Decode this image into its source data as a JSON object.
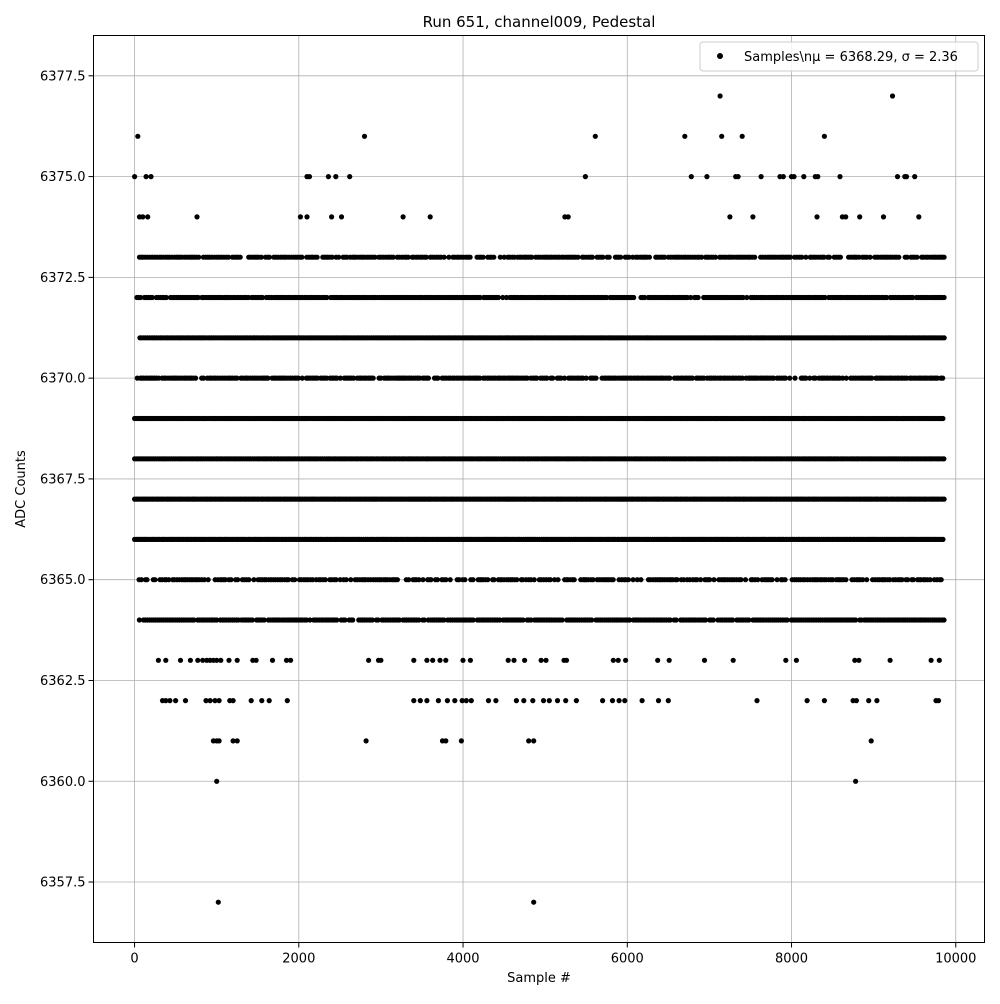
{
  "chart_data": {
    "type": "scatter",
    "title": "Run 651, channel009, Pedestal",
    "xlabel": "Sample #",
    "ylabel": "ADC Counts",
    "xlim": [
      -500,
      10350
    ],
    "ylim": [
      6356.0,
      6378.5
    ],
    "xticks": [
      0,
      2000,
      4000,
      6000,
      8000,
      10000
    ],
    "xtick_labels": [
      "0",
      "2000",
      "4000",
      "6000",
      "8000",
      "10000"
    ],
    "yticks": [
      6357.5,
      6360.0,
      6362.5,
      6365.0,
      6367.5,
      6370.0,
      6372.5,
      6375.0,
      6377.5
    ],
    "ytick_labels": [
      "6357.5",
      "6360.0",
      "6362.5",
      "6365.0",
      "6367.5",
      "6370.0",
      "6372.5",
      "6375.0",
      "6377.5"
    ],
    "grid": true,
    "legend_position": "upper right",
    "series": [
      {
        "name": "Samples\\nμ = 6368.29, σ = 2.36",
        "color": "#000000",
        "marker": "circle",
        "points": [
          [
            40,
            6376
          ],
          [
            1020,
            6357
          ],
          [
            4860,
            6357
          ],
          [
            1000,
            6360
          ],
          [
            8780,
            6360
          ],
          [
            5610,
            6376
          ],
          [
            6700,
            6376
          ],
          [
            7150,
            6376
          ],
          [
            7400,
            6376
          ],
          [
            8400,
            6376
          ],
          [
            2800,
            6376
          ],
          [
            7130,
            6377
          ],
          [
            9230,
            6377
          ],
          [
            960,
            6361
          ],
          [
            1000,
            6361
          ],
          [
            1030,
            6361
          ],
          [
            1200,
            6361
          ],
          [
            1250,
            6361
          ],
          [
            2820,
            6361
          ],
          [
            3750,
            6361
          ],
          [
            3790,
            6361
          ],
          [
            3980,
            6361
          ],
          [
            4800,
            6361
          ],
          [
            4860,
            6361
          ],
          [
            8970,
            6361
          ],
          [
            0,
            6375
          ],
          [
            140,
            6375
          ],
          [
            200,
            6375
          ],
          [
            2100,
            6375
          ],
          [
            2130,
            6375
          ],
          [
            2360,
            6375
          ],
          [
            2450,
            6375
          ],
          [
            2620,
            6375
          ],
          [
            5490,
            6375
          ],
          [
            6780,
            6375
          ],
          [
            6970,
            6375
          ],
          [
            7320,
            6375
          ],
          [
            7350,
            6375
          ],
          [
            7630,
            6375
          ],
          [
            7860,
            6375
          ],
          [
            7900,
            6375
          ],
          [
            8000,
            6375
          ],
          [
            8030,
            6375
          ],
          [
            8150,
            6375
          ],
          [
            8290,
            6375
          ],
          [
            8320,
            6375
          ],
          [
            8590,
            6375
          ],
          [
            9290,
            6375
          ],
          [
            9380,
            6375
          ],
          [
            9400,
            6375
          ],
          [
            9500,
            6375
          ],
          [
            60,
            6374
          ],
          [
            100,
            6374
          ],
          [
            160,
            6374
          ],
          [
            760,
            6374
          ],
          [
            2020,
            6374
          ],
          [
            2100,
            6374
          ],
          [
            2400,
            6374
          ],
          [
            2520,
            6374
          ],
          [
            3270,
            6374
          ],
          [
            3600,
            6374
          ],
          [
            5240,
            6374
          ],
          [
            5280,
            6374
          ],
          [
            7250,
            6374
          ],
          [
            7530,
            6374
          ],
          [
            8310,
            6374
          ],
          [
            8620,
            6374
          ],
          [
            8660,
            6374
          ],
          [
            8830,
            6374
          ],
          [
            9120,
            6374
          ],
          [
            9550,
            6374
          ],
          [
            340,
            6362
          ],
          [
            380,
            6362
          ],
          [
            430,
            6362
          ],
          [
            500,
            6362
          ],
          [
            620,
            6362
          ],
          [
            870,
            6362
          ],
          [
            920,
            6362
          ],
          [
            980,
            6362
          ],
          [
            1030,
            6362
          ],
          [
            1160,
            6362
          ],
          [
            1200,
            6362
          ],
          [
            1420,
            6362
          ],
          [
            1550,
            6362
          ],
          [
            1640,
            6362
          ],
          [
            1860,
            6362
          ],
          [
            3400,
            6362
          ],
          [
            3480,
            6362
          ],
          [
            3560,
            6362
          ],
          [
            3700,
            6362
          ],
          [
            3810,
            6362
          ],
          [
            3900,
            6362
          ],
          [
            3990,
            6362
          ],
          [
            4040,
            6362
          ],
          [
            4100,
            6362
          ],
          [
            4310,
            6362
          ],
          [
            4400,
            6362
          ],
          [
            4650,
            6362
          ],
          [
            4740,
            6362
          ],
          [
            4850,
            6362
          ],
          [
            4980,
            6362
          ],
          [
            5050,
            6362
          ],
          [
            5150,
            6362
          ],
          [
            5250,
            6362
          ],
          [
            5380,
            6362
          ],
          [
            5700,
            6362
          ],
          [
            5820,
            6362
          ],
          [
            5900,
            6362
          ],
          [
            5970,
            6362
          ],
          [
            6180,
            6362
          ],
          [
            6380,
            6362
          ],
          [
            6500,
            6362
          ],
          [
            7580,
            6362
          ],
          [
            8190,
            6362
          ],
          [
            8400,
            6362
          ],
          [
            8750,
            6362
          ],
          [
            8790,
            6362
          ],
          [
            8940,
            6362
          ],
          [
            9040,
            6362
          ],
          [
            9760,
            6362
          ],
          [
            9790,
            6362
          ],
          [
            290,
            6363
          ],
          [
            380,
            6363
          ],
          [
            560,
            6363
          ],
          [
            680,
            6363
          ],
          [
            770,
            6363
          ],
          [
            830,
            6363
          ],
          [
            880,
            6363
          ],
          [
            920,
            6363
          ],
          [
            960,
            6363
          ],
          [
            1000,
            6363
          ],
          [
            1050,
            6363
          ],
          [
            1150,
            6363
          ],
          [
            1250,
            6363
          ],
          [
            1440,
            6363
          ],
          [
            1480,
            6363
          ],
          [
            1680,
            6363
          ],
          [
            1850,
            6363
          ],
          [
            1900,
            6363
          ],
          [
            2850,
            6363
          ],
          [
            2970,
            6363
          ],
          [
            3000,
            6363
          ],
          [
            3400,
            6363
          ],
          [
            3560,
            6363
          ],
          [
            3630,
            6363
          ],
          [
            3720,
            6363
          ],
          [
            3790,
            6363
          ],
          [
            4000,
            6363
          ],
          [
            4090,
            6363
          ],
          [
            4550,
            6363
          ],
          [
            4620,
            6363
          ],
          [
            4750,
            6363
          ],
          [
            4950,
            6363
          ],
          [
            5010,
            6363
          ],
          [
            5230,
            6363
          ],
          [
            5260,
            6363
          ],
          [
            5830,
            6363
          ],
          [
            5890,
            6363
          ],
          [
            5980,
            6363
          ],
          [
            6370,
            6363
          ],
          [
            6510,
            6363
          ],
          [
            6940,
            6363
          ],
          [
            7290,
            6363
          ],
          [
            7930,
            6363
          ],
          [
            8060,
            6363
          ],
          [
            8770,
            6363
          ],
          [
            8820,
            6363
          ],
          [
            9200,
            6363
          ],
          [
            9700,
            6363
          ],
          [
            9800,
            6363
          ]
        ]
      }
    ],
    "band_levels": [
      6364,
      6365,
      6366,
      6367,
      6368,
      6369,
      6370,
      6371,
      6372,
      6373
    ],
    "sample_count": 10000
  }
}
